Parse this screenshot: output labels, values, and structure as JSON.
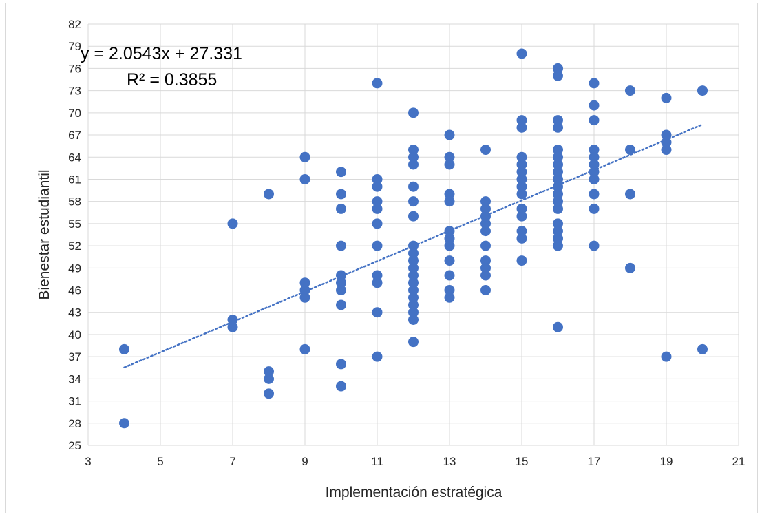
{
  "chart_data": {
    "type": "scatter",
    "xlabel": "Implementación estratégica",
    "ylabel": "Bienestar estudiantil",
    "xlim": [
      3,
      21
    ],
    "ylim": [
      25,
      82
    ],
    "x_ticks": [
      3,
      5,
      7,
      9,
      11,
      13,
      15,
      17,
      19,
      21
    ],
    "y_ticks": [
      25,
      28,
      31,
      34,
      37,
      40,
      43,
      46,
      49,
      52,
      55,
      58,
      61,
      64,
      67,
      70,
      73,
      76,
      79,
      82
    ],
    "grid": true,
    "marker_color": "#4472C4",
    "trendline": {
      "type": "linear",
      "slope": 2.0543,
      "intercept": 27.331,
      "x_range": [
        4,
        20
      ],
      "style": "dotted",
      "equation_label": "y = 2.0543x + 27.331",
      "r2_label": "R² = 0.3855"
    },
    "points": [
      [
        4,
        38
      ],
      [
        4,
        28
      ],
      [
        7,
        55
      ],
      [
        7,
        42
      ],
      [
        7,
        41
      ],
      [
        8,
        59
      ],
      [
        8,
        35
      ],
      [
        8,
        34
      ],
      [
        8,
        32
      ],
      [
        9,
        64
      ],
      [
        9,
        61
      ],
      [
        9,
        47
      ],
      [
        9,
        46
      ],
      [
        9,
        45
      ],
      [
        9,
        38
      ],
      [
        10,
        62
      ],
      [
        10,
        59
      ],
      [
        10,
        57
      ],
      [
        10,
        52
      ],
      [
        10,
        48
      ],
      [
        10,
        47
      ],
      [
        10,
        46
      ],
      [
        10,
        44
      ],
      [
        10,
        36
      ],
      [
        10,
        33
      ],
      [
        11,
        74
      ],
      [
        11,
        61
      ],
      [
        11,
        60
      ],
      [
        11,
        58
      ],
      [
        11,
        57
      ],
      [
        11,
        55
      ],
      [
        11,
        52
      ],
      [
        11,
        48
      ],
      [
        11,
        47
      ],
      [
        11,
        43
      ],
      [
        11,
        37
      ],
      [
        12,
        70
      ],
      [
        12,
        65
      ],
      [
        12,
        64
      ],
      [
        12,
        63
      ],
      [
        12,
        60
      ],
      [
        12,
        58
      ],
      [
        12,
        56
      ],
      [
        12,
        52
      ],
      [
        12,
        51
      ],
      [
        12,
        50
      ],
      [
        12,
        49
      ],
      [
        12,
        48
      ],
      [
        12,
        47
      ],
      [
        12,
        46
      ],
      [
        12,
        45
      ],
      [
        12,
        44
      ],
      [
        12,
        43
      ],
      [
        12,
        42
      ],
      [
        12,
        39
      ],
      [
        13,
        67
      ],
      [
        13,
        64
      ],
      [
        13,
        63
      ],
      [
        13,
        59
      ],
      [
        13,
        58
      ],
      [
        13,
        54
      ],
      [
        13,
        53
      ],
      [
        13,
        52
      ],
      [
        13,
        50
      ],
      [
        13,
        48
      ],
      [
        13,
        46
      ],
      [
        13,
        45
      ],
      [
        14,
        65
      ],
      [
        14,
        58
      ],
      [
        14,
        57
      ],
      [
        14,
        56
      ],
      [
        14,
        55
      ],
      [
        14,
        54
      ],
      [
        14,
        52
      ],
      [
        14,
        50
      ],
      [
        14,
        49
      ],
      [
        14,
        48
      ],
      [
        14,
        46
      ],
      [
        15,
        78
      ],
      [
        15,
        69
      ],
      [
        15,
        68
      ],
      [
        15,
        64
      ],
      [
        15,
        63
      ],
      [
        15,
        62
      ],
      [
        15,
        61
      ],
      [
        15,
        60
      ],
      [
        15,
        59
      ],
      [
        15,
        57
      ],
      [
        15,
        56
      ],
      [
        15,
        54
      ],
      [
        15,
        53
      ],
      [
        15,
        50
      ],
      [
        16,
        76
      ],
      [
        16,
        75
      ],
      [
        16,
        69
      ],
      [
        16,
        68
      ],
      [
        16,
        65
      ],
      [
        16,
        64
      ],
      [
        16,
        63
      ],
      [
        16,
        62
      ],
      [
        16,
        61
      ],
      [
        16,
        60
      ],
      [
        16,
        59
      ],
      [
        16,
        58
      ],
      [
        16,
        57
      ],
      [
        16,
        55
      ],
      [
        16,
        54
      ],
      [
        16,
        53
      ],
      [
        16,
        52
      ],
      [
        16,
        41
      ],
      [
        17,
        74
      ],
      [
        17,
        71
      ],
      [
        17,
        69
      ],
      [
        17,
        65
      ],
      [
        17,
        64
      ],
      [
        17,
        63
      ],
      [
        17,
        62
      ],
      [
        17,
        61
      ],
      [
        17,
        59
      ],
      [
        17,
        57
      ],
      [
        17,
        52
      ],
      [
        18,
        73
      ],
      [
        18,
        65
      ],
      [
        18,
        59
      ],
      [
        18,
        49
      ],
      [
        19,
        72
      ],
      [
        19,
        67
      ],
      [
        19,
        66
      ],
      [
        19,
        65
      ],
      [
        19,
        37
      ],
      [
        20,
        73
      ],
      [
        20,
        38
      ]
    ]
  }
}
